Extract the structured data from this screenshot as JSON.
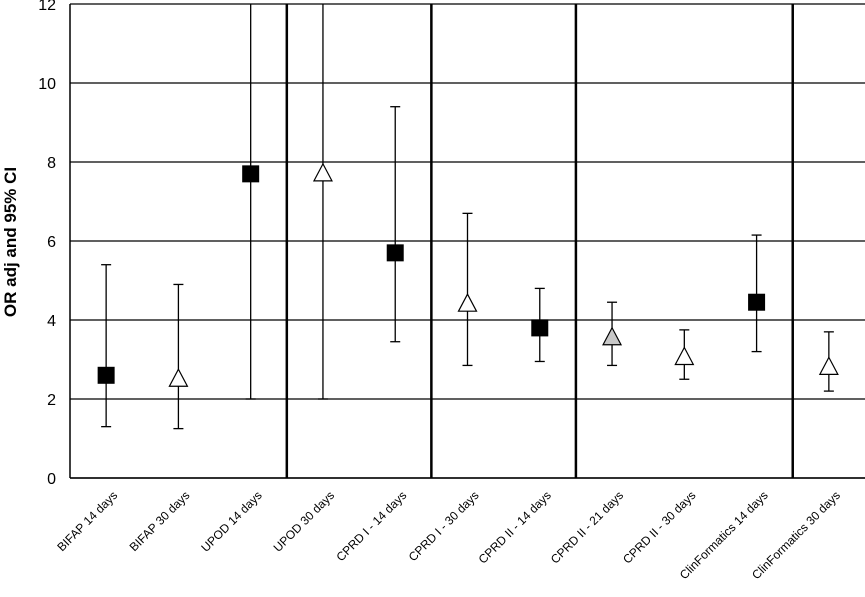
{
  "chart_data": {
    "type": "scatter",
    "title": "",
    "xlabel": "",
    "ylabel": "OR adj and 95% CI",
    "ylim": [
      0,
      12
    ],
    "yticks": [
      0,
      2,
      4,
      6,
      8,
      10,
      12
    ],
    "grid": true,
    "categories": [
      "BIFAP 14 days",
      "BIFAP 30 days",
      "UPOD 14 days",
      "UPOD 30 days",
      "CPRD I - 14 days",
      "CPRD I - 30 days",
      "CPRD II - 14 days",
      "CPRD II - 21 days",
      "CPRD II - 30 days",
      "ClinFormatics 14 days",
      "ClinFormatics 30 days"
    ],
    "points": [
      {
        "value": 2.6,
        "lower": 1.3,
        "upper": 5.4,
        "marker": "square",
        "color": "#000000"
      },
      {
        "value": 2.5,
        "lower": 1.25,
        "upper": 4.9,
        "marker": "triangle",
        "color": "#ffffff"
      },
      {
        "value": 7.7,
        "lower": 2.0,
        "upper": 12.0,
        "marker": "square",
        "color": "#000000"
      },
      {
        "value": 7.7,
        "lower": 2.0,
        "upper": 12.0,
        "marker": "triangle",
        "color": "#ffffff"
      },
      {
        "value": 5.7,
        "lower": 3.45,
        "upper": 9.4,
        "marker": "square",
        "color": "#000000"
      },
      {
        "value": 4.4,
        "lower": 2.85,
        "upper": 6.7,
        "marker": "triangle",
        "color": "#ffffff"
      },
      {
        "value": 3.8,
        "lower": 2.95,
        "upper": 4.8,
        "marker": "square",
        "color": "#000000"
      },
      {
        "value": 3.55,
        "lower": 2.85,
        "upper": 4.45,
        "marker": "triangle",
        "color": "#c8c8c8"
      },
      {
        "value": 3.05,
        "lower": 2.5,
        "upper": 3.75,
        "marker": "triangle",
        "color": "#ffffff"
      },
      {
        "value": 4.45,
        "lower": 3.2,
        "upper": 6.15,
        "marker": "square",
        "color": "#000000"
      },
      {
        "value": 2.8,
        "lower": 2.2,
        "upper": 3.7,
        "marker": "triangle",
        "color": "#ffffff"
      }
    ],
    "group_separators_after": [
      2,
      4,
      6,
      9
    ]
  }
}
